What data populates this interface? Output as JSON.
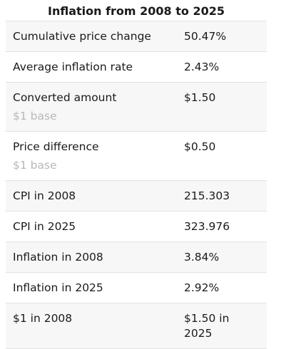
{
  "title": "Inflation from 2008 to 2025",
  "table": {
    "rows": [
      {
        "label": "Cumulative price change",
        "value": "50.47%"
      },
      {
        "label": "Average inflation rate",
        "value": "2.43%"
      },
      {
        "label": "Converted amount",
        "sublabel": "$1 base",
        "value": "$1.50"
      },
      {
        "label": "Price difference",
        "sublabel": "$1 base",
        "value": "$0.50"
      },
      {
        "label": "CPI in 2008",
        "value": "215.303"
      },
      {
        "label": "CPI in 2025",
        "value": "323.976"
      },
      {
        "label": "Inflation in 2008",
        "value": "3.84%"
      },
      {
        "label": "Inflation in 2025",
        "value": "2.92%"
      },
      {
        "label": "$1 in 2008",
        "value": "$1.50 in 2025"
      }
    ]
  }
}
